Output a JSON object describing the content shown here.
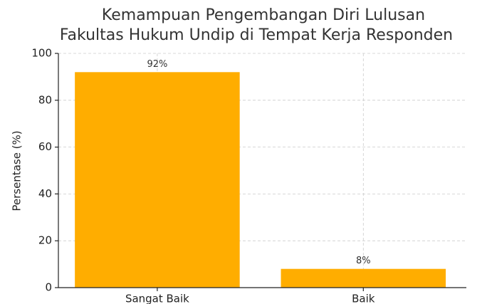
{
  "chart_data": {
    "type": "bar",
    "title": [
      "Kemampuan Pengembangan Diri Lulusan",
      "Fakultas Hukum Undip di Tempat Kerja Responden"
    ],
    "y_label": "Persentase (%)",
    "categories": [
      "Sangat Baik",
      "Baik"
    ],
    "values": [
      92,
      8
    ],
    "value_labels": [
      "92%",
      "8%"
    ],
    "color": "#ffad00",
    "ylim": [
      0,
      100
    ],
    "yticks": [
      0,
      20,
      40,
      60,
      80,
      100
    ],
    "grid": true
  }
}
